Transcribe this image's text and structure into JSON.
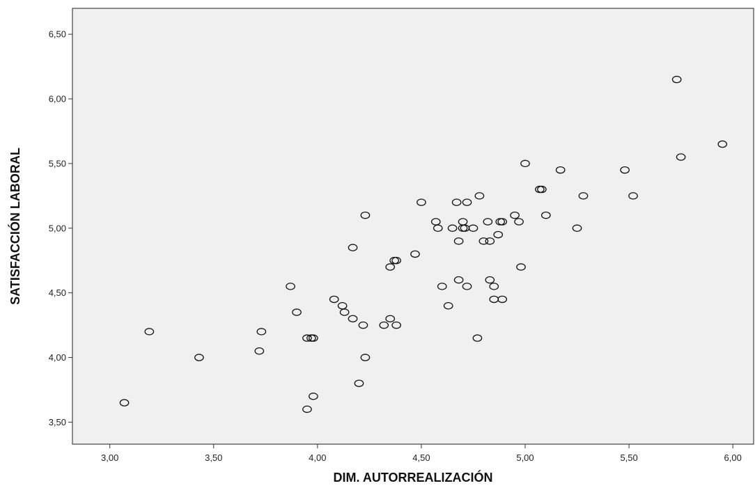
{
  "chart_data": {
    "type": "scatter",
    "xlabel": "DIM. AUTORREALIZACIÓN",
    "ylabel": "SATISFACCIÓN LABORAL",
    "xlim": [
      2.82,
      6.1
    ],
    "ylim": [
      3.33,
      6.7
    ],
    "xticks": [
      3.0,
      3.5,
      4.0,
      4.5,
      5.0,
      5.5,
      6.0
    ],
    "xtick_labels": [
      "3,00",
      "3,50",
      "4,00",
      "4,50",
      "5,00",
      "5,50",
      "6,00"
    ],
    "yticks": [
      3.5,
      4.0,
      4.5,
      5.0,
      5.5,
      6.0,
      6.5
    ],
    "ytick_labels": [
      "3,50",
      "4,00",
      "4,50",
      "5,00",
      "5,50",
      "6,00",
      "6,50"
    ],
    "grid": false,
    "background": "#f0f0f0",
    "marker_color": "#111111",
    "points": [
      {
        "x": 3.07,
        "y": 3.65
      },
      {
        "x": 3.19,
        "y": 4.2
      },
      {
        "x": 3.43,
        "y": 4.0
      },
      {
        "x": 3.72,
        "y": 4.05
      },
      {
        "x": 3.73,
        "y": 4.2
      },
      {
        "x": 3.87,
        "y": 4.55
      },
      {
        "x": 3.9,
        "y": 4.35
      },
      {
        "x": 3.95,
        "y": 4.15
      },
      {
        "x": 3.97,
        "y": 4.15
      },
      {
        "x": 3.98,
        "y": 4.15
      },
      {
        "x": 3.95,
        "y": 3.6
      },
      {
        "x": 3.98,
        "y": 3.7
      },
      {
        "x": 4.08,
        "y": 4.45
      },
      {
        "x": 4.12,
        "y": 4.4
      },
      {
        "x": 4.13,
        "y": 4.35
      },
      {
        "x": 4.17,
        "y": 4.3
      },
      {
        "x": 4.17,
        "y": 4.85
      },
      {
        "x": 4.2,
        "y": 3.8
      },
      {
        "x": 4.22,
        "y": 4.25
      },
      {
        "x": 4.23,
        "y": 4.0
      },
      {
        "x": 4.23,
        "y": 5.1
      },
      {
        "x": 4.32,
        "y": 4.25
      },
      {
        "x": 4.35,
        "y": 4.3
      },
      {
        "x": 4.35,
        "y": 4.7
      },
      {
        "x": 4.37,
        "y": 4.75
      },
      {
        "x": 4.38,
        "y": 4.75
      },
      {
        "x": 4.38,
        "y": 4.25
      },
      {
        "x": 4.47,
        "y": 4.8
      },
      {
        "x": 4.5,
        "y": 5.2
      },
      {
        "x": 4.57,
        "y": 5.05
      },
      {
        "x": 4.58,
        "y": 5.0
      },
      {
        "x": 4.6,
        "y": 4.55
      },
      {
        "x": 4.63,
        "y": 4.4
      },
      {
        "x": 4.65,
        "y": 5.0
      },
      {
        "x": 4.67,
        "y": 5.2
      },
      {
        "x": 4.68,
        "y": 4.9
      },
      {
        "x": 4.68,
        "y": 4.6
      },
      {
        "x": 4.7,
        "y": 5.05
      },
      {
        "x": 4.7,
        "y": 5.0
      },
      {
        "x": 4.71,
        "y": 5.0
      },
      {
        "x": 4.72,
        "y": 5.2
      },
      {
        "x": 4.72,
        "y": 4.55
      },
      {
        "x": 4.75,
        "y": 5.0
      },
      {
        "x": 4.77,
        "y": 4.15
      },
      {
        "x": 4.78,
        "y": 5.25
      },
      {
        "x": 4.8,
        "y": 4.9
      },
      {
        "x": 4.82,
        "y": 5.05
      },
      {
        "x": 4.83,
        "y": 4.9
      },
      {
        "x": 4.83,
        "y": 4.6
      },
      {
        "x": 4.85,
        "y": 4.55
      },
      {
        "x": 4.85,
        "y": 4.45
      },
      {
        "x": 4.87,
        "y": 4.95
      },
      {
        "x": 4.88,
        "y": 5.05
      },
      {
        "x": 4.89,
        "y": 5.05
      },
      {
        "x": 4.89,
        "y": 4.45
      },
      {
        "x": 4.95,
        "y": 5.1
      },
      {
        "x": 4.97,
        "y": 5.05
      },
      {
        "x": 4.98,
        "y": 4.7
      },
      {
        "x": 5.0,
        "y": 5.5
      },
      {
        "x": 5.07,
        "y": 5.3
      },
      {
        "x": 5.08,
        "y": 5.3
      },
      {
        "x": 5.1,
        "y": 5.1
      },
      {
        "x": 5.17,
        "y": 5.45
      },
      {
        "x": 5.25,
        "y": 5.0
      },
      {
        "x": 5.28,
        "y": 5.25
      },
      {
        "x": 5.48,
        "y": 5.45
      },
      {
        "x": 5.52,
        "y": 5.25
      },
      {
        "x": 5.73,
        "y": 6.15
      },
      {
        "x": 5.75,
        "y": 5.55
      },
      {
        "x": 5.95,
        "y": 5.65
      }
    ]
  }
}
